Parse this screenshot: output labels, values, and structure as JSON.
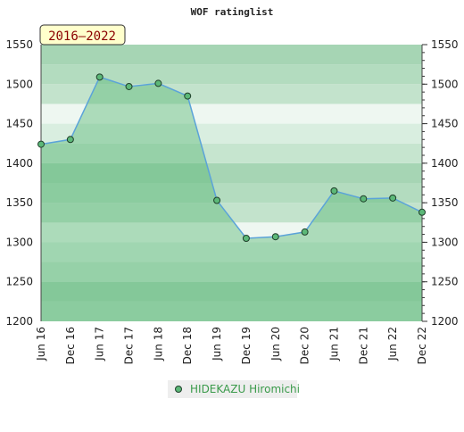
{
  "chart_data": {
    "type": "line",
    "title": "WOF ratinglist",
    "annotation": "2016–2022",
    "categories": [
      "Jun 16",
      "Dec 16",
      "Jun 17",
      "Dec 17",
      "Jun 18",
      "Dec 18",
      "Jun 19",
      "Dec 19",
      "Jun 20",
      "Dec 20",
      "Jun 21",
      "Dec 21",
      "Jun 22",
      "Dec 22"
    ],
    "series": [
      {
        "name": "HIDEKAZU Hiromichi",
        "color": "#5ba3d9",
        "marker_color": "#5cb878",
        "values": [
          1424,
          1430,
          1509,
          1497,
          1501,
          1485,
          1353,
          1305,
          1307,
          1313,
          1365,
          1355,
          1356,
          1338
        ]
      }
    ],
    "ylim": [
      1200,
      1550
    ],
    "yticks": [
      1200,
      1250,
      1300,
      1350,
      1400,
      1450,
      1500,
      1550
    ],
    "legend": "bottom"
  }
}
